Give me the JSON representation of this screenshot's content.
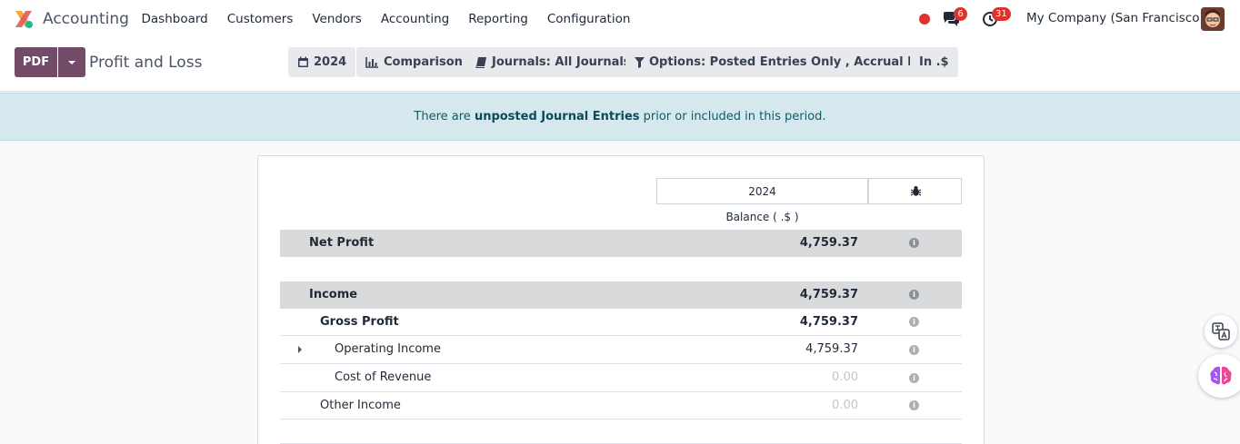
{
  "navbar": {
    "app_name": "Accounting",
    "menu": [
      "Dashboard",
      "Customers",
      "Vendors",
      "Accounting",
      "Reporting",
      "Configuration"
    ],
    "chat_count": "6",
    "activity_count": "31",
    "company": "My Company (San Francisco)"
  },
  "control_panel": {
    "pdf_label": "PDF",
    "title": "Profit and Loss",
    "filters": {
      "date": "2024",
      "comparison": "Comparison",
      "journals": "Journals: All Journals",
      "options": "Options: Posted Entries Only , Accrual Basis",
      "currency": "In .$"
    }
  },
  "alert": {
    "before": "There are ",
    "link": "unposted Journal Entries",
    "after": " prior or included in this period."
  },
  "report": {
    "column_year": "2024",
    "column_label": "Balance ( .$ )",
    "rows": [
      {
        "label": "Net Profit",
        "value": "4,759.37"
      },
      {
        "label": "Income",
        "value": "4,759.37"
      },
      {
        "label": "Gross Profit",
        "value": "4,759.37"
      },
      {
        "label": "Operating Income",
        "value": "4,759.37"
      },
      {
        "label": "Cost of Revenue",
        "value": "0.00"
      },
      {
        "label": "Other Income",
        "value": "0.00"
      }
    ]
  },
  "colors": {
    "brand": "#714b67",
    "alert_bg": "#d4e8ee",
    "badge": "#e0312b",
    "row_shade": "#d9dadc"
  }
}
